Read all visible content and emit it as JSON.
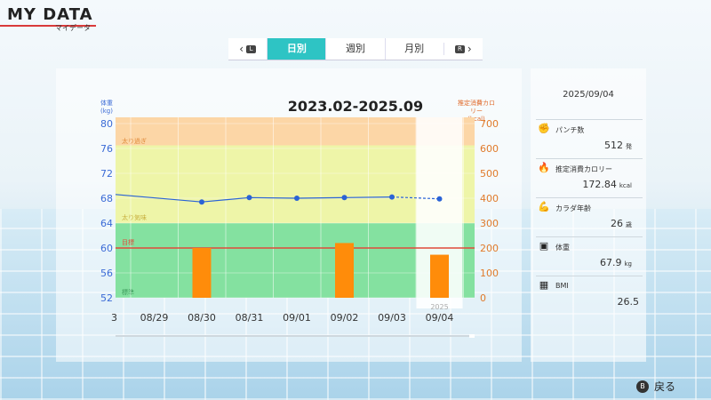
{
  "header": {
    "title": "MY DATA",
    "subtitle": "マイデータ"
  },
  "tabs": {
    "left_key": "L",
    "right_key": "R",
    "items": [
      {
        "label": "日別",
        "active": true
      },
      {
        "label": "週別",
        "active": false
      },
      {
        "label": "月別",
        "active": false
      }
    ]
  },
  "chart_data": {
    "type": "bar+line",
    "title": "2023.02-2025.09",
    "y_left_label": "体重 (kg)",
    "y_left_label_line1": "体重",
    "y_left_label_line2": "(kg)",
    "y_right_label_line1": "推定消費カロリー",
    "y_right_label_line2": "(kcal)",
    "y_left_ticks": [
      "80",
      "76",
      "72",
      "68",
      "64",
      "60",
      "56",
      "52"
    ],
    "y_right_ticks": [
      "700",
      "600",
      "500",
      "400",
      "300",
      "200",
      "100",
      "0"
    ],
    "y_left_range": [
      52,
      81
    ],
    "y_right_range": [
      0,
      725
    ],
    "categories": [
      "08/29",
      "08/30",
      "08/31",
      "09/01",
      "09/02",
      "09/03",
      "09/04"
    ],
    "partial_left_label": "3",
    "year_marker": "2025",
    "weight": [
      null,
      67.4,
      68.1,
      68.0,
      68.1,
      68.2,
      67.9
    ],
    "weight_before": 68.6,
    "calories": [
      0,
      200,
      0,
      0,
      220,
      0,
      173
    ],
    "selected_index": 6,
    "target_weight": 60,
    "bands": [
      {
        "label": "太り過ぎ",
        "from": 76.5,
        "to": 81,
        "color": "#fcd6a6"
      },
      {
        "label": "太り気味",
        "from": 64,
        "to": 76.5,
        "color": "#eef5a8"
      },
      {
        "label": "標準",
        "from": 52,
        "to": 64,
        "color": "#84e1a0"
      }
    ],
    "target_label": "目標",
    "colors": {
      "weight_line": "#2a63d6",
      "bar": "#ff8c0a",
      "target": "#e04a3a"
    }
  },
  "side": {
    "date": "2025/09/04",
    "stats": [
      {
        "icon": "punch-icon",
        "glyph": "✊",
        "label": "パンチ数",
        "value": "512",
        "unit": "発"
      },
      {
        "icon": "flame-icon",
        "glyph": "🔥",
        "label": "推定消費カロリー",
        "value": "172.84",
        "unit": "kcal"
      },
      {
        "icon": "muscle-icon",
        "glyph": "💪",
        "label": "カラダ年齢",
        "value": "26",
        "unit": "歳"
      },
      {
        "icon": "scale-icon",
        "glyph": "▣",
        "label": "体重",
        "value": "67.9",
        "unit": "kg"
      },
      {
        "icon": "calculator-icon",
        "glyph": "▦",
        "label": "BMI",
        "value": "26.5",
        "unit": ""
      }
    ]
  },
  "footer": {
    "back_button": "B",
    "back_label": "戻る"
  }
}
